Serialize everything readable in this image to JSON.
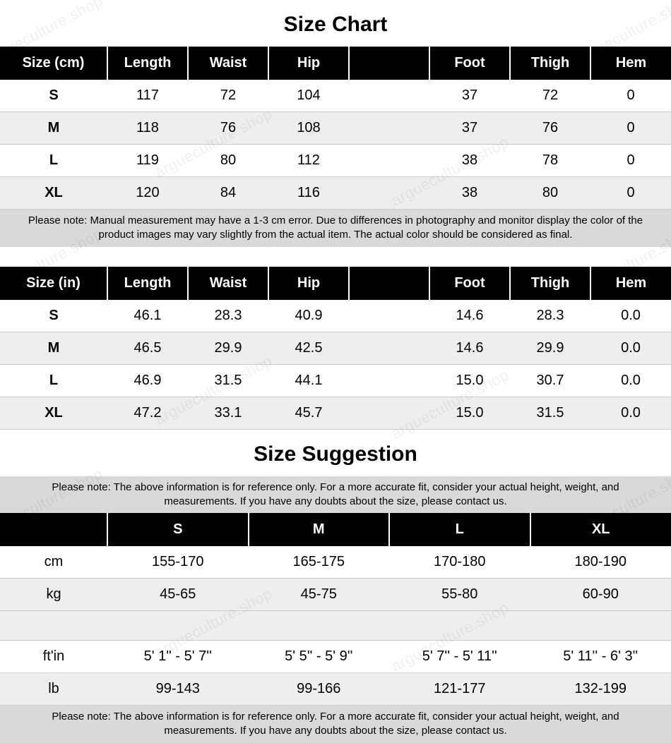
{
  "watermark": "argueculture.shop",
  "size_chart": {
    "title": "Size Chart",
    "title_fontsize": 30,
    "header_bg": "#000000",
    "header_fg": "#ffffff",
    "row_alt_bg": "#eeeeee",
    "note_bg": "#d9d9d9",
    "cell_fontsize": 20,
    "header_fontsize": 20,
    "note_fontsize": 15,
    "cm": {
      "columns": [
        "Size (cm)",
        "Length",
        "Waist",
        "Hip",
        "",
        "Foot",
        "Thigh",
        "Hem"
      ],
      "rows": [
        [
          "S",
          "117",
          "72",
          "104",
          "",
          "37",
          "72",
          "0"
        ],
        [
          "M",
          "118",
          "76",
          "108",
          "",
          "37",
          "76",
          "0"
        ],
        [
          "L",
          "119",
          "80",
          "112",
          "",
          "38",
          "78",
          "0"
        ],
        [
          "XL",
          "120",
          "84",
          "116",
          "",
          "38",
          "80",
          "0"
        ]
      ],
      "note": "Please note: Manual measurement may have a 1-3 cm error. Due to differences in photography and monitor display the color of the product images may vary slightly from the actual item. The actual color should be considered as final."
    },
    "in": {
      "columns": [
        "Size (in)",
        "Length",
        "Waist",
        "Hip",
        "",
        "Foot",
        "Thigh",
        "Hem"
      ],
      "rows": [
        [
          "S",
          "46.1",
          "28.3",
          "40.9",
          "",
          "14.6",
          "28.3",
          "0.0"
        ],
        [
          "M",
          "46.5",
          "29.9",
          "42.5",
          "",
          "14.6",
          "29.9",
          "0.0"
        ],
        [
          "L",
          "46.9",
          "31.5",
          "44.1",
          "",
          "15.0",
          "30.7",
          "0.0"
        ],
        [
          "XL",
          "47.2",
          "33.1",
          "45.7",
          "",
          "15.0",
          "31.5",
          "0.0"
        ]
      ]
    }
  },
  "size_suggestion": {
    "title": "Size Suggestion",
    "title_fontsize": 30,
    "note_top": "Please note: The above information is for reference only. For a more accurate fit, consider your actual height, weight, and measurements. If you have any doubts about the size, please contact us.",
    "columns": [
      "",
      "S",
      "M",
      "L",
      "XL"
    ],
    "metric_rows": [
      [
        "cm",
        "155-170",
        "165-175",
        "170-180",
        "180-190"
      ],
      [
        "kg",
        "45-65",
        "45-75",
        "55-80",
        "60-90"
      ]
    ],
    "imperial_rows": [
      [
        "ft'in",
        "5' 1'' - 5' 7''",
        "5' 5'' - 5' 9''",
        "5' 7'' - 5' 11''",
        "5' 11'' - 6' 3''"
      ],
      [
        "lb",
        "99-143",
        "99-166",
        "121-177",
        "132-199"
      ]
    ],
    "note_bottom": "Please note: The above information is for reference only. For a more accurate fit, consider your actual height, weight, and measurements. If you have any doubts about the size, please contact us."
  }
}
